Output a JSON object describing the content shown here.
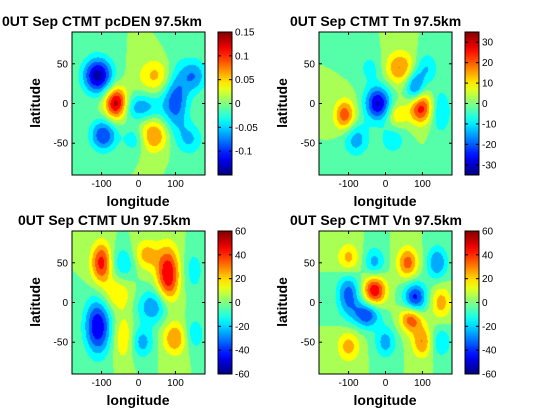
{
  "chart_data": [
    {
      "type": "heatmap",
      "title": "0UT Sep CTMT pcDEN  97.5km",
      "xlabel": "longitude",
      "ylabel": "latitude",
      "xlim": [
        -180,
        180
      ],
      "ylim": [
        -90,
        90
      ],
      "xticks": [
        -100,
        0,
        100
      ],
      "yticks": [
        50,
        0,
        -50
      ],
      "colorbar": {
        "ticks": [
          0.15,
          0.1,
          0.05,
          0,
          -0.05,
          -0.1
        ],
        "tick_labels": [
          "0.15",
          "0.1",
          "0.05",
          "0",
          "-0.05",
          "-0.1"
        ],
        "range": [
          -0.15,
          0.15
        ]
      },
      "features": [
        {
          "x": -110,
          "y": 35,
          "value": -0.14,
          "sx": 28,
          "sy": 16
        },
        {
          "x": -60,
          "y": 0,
          "value": 0.15,
          "sx": 22,
          "sy": 14
        },
        {
          "x": 50,
          "y": 35,
          "value": 0.06,
          "sx": 35,
          "sy": 15
        },
        {
          "x": 100,
          "y": 5,
          "value": -0.09,
          "sx": 25,
          "sy": 30
        },
        {
          "x": 150,
          "y": 35,
          "value": -0.07,
          "sx": 25,
          "sy": 15
        },
        {
          "x": 5,
          "y": -5,
          "value": -0.07,
          "sx": 40,
          "sy": 12
        },
        {
          "x": -95,
          "y": -40,
          "value": -0.1,
          "sx": 25,
          "sy": 14
        },
        {
          "x": 40,
          "y": -40,
          "value": 0.08,
          "sx": 30,
          "sy": 15
        },
        {
          "x": -10,
          "y": -45,
          "value": -0.05,
          "sx": 22,
          "sy": 12
        },
        {
          "x": 140,
          "y": -45,
          "value": -0.05,
          "sx": 25,
          "sy": 14
        }
      ]
    },
    {
      "type": "heatmap",
      "title": "0UT Sep CTMT Tn  97.5km",
      "xlabel": "longitude",
      "ylabel": "latitude",
      "xlim": [
        -180,
        180
      ],
      "ylim": [
        -90,
        90
      ],
      "xticks": [
        -100,
        0,
        100
      ],
      "yticks": [
        50,
        0,
        -50
      ],
      "colorbar": {
        "ticks": [
          30,
          20,
          10,
          0,
          -10,
          -20,
          -30
        ],
        "tick_labels": [
          "30",
          "20",
          "10",
          "0",
          "-10",
          "-20",
          "-30"
        ],
        "range": [
          -35,
          35
        ]
      },
      "features": [
        {
          "x": 40,
          "y": 45,
          "value": 18,
          "sx": 30,
          "sy": 15
        },
        {
          "x": -40,
          "y": 45,
          "value": -8,
          "sx": 25,
          "sy": 14
        },
        {
          "x": 110,
          "y": 45,
          "value": -12,
          "sx": 22,
          "sy": 14
        },
        {
          "x": -20,
          "y": 0,
          "value": -30,
          "sx": 25,
          "sy": 15
        },
        {
          "x": 80,
          "y": 20,
          "value": -22,
          "sx": 18,
          "sy": 14
        },
        {
          "x": 95,
          "y": -5,
          "value": 28,
          "sx": 22,
          "sy": 14
        },
        {
          "x": -110,
          "y": -15,
          "value": 22,
          "sx": 20,
          "sy": 14
        },
        {
          "x": 30,
          "y": -15,
          "value": 12,
          "sx": 20,
          "sy": 12
        },
        {
          "x": -80,
          "y": -45,
          "value": -15,
          "sx": 25,
          "sy": 15
        },
        {
          "x": 20,
          "y": -45,
          "value": -10,
          "sx": 25,
          "sy": 14
        },
        {
          "x": 150,
          "y": -10,
          "value": -12,
          "sx": 20,
          "sy": 20
        }
      ]
    },
    {
      "type": "heatmap",
      "title": "0UT Sep CTMT Un  97.5km",
      "xlabel": "longitude",
      "ylabel": "latitude",
      "xlim": [
        -180,
        180
      ],
      "ylim": [
        -90,
        90
      ],
      "xticks": [
        -100,
        0,
        100
      ],
      "yticks": [
        50,
        0,
        -50
      ],
      "colorbar": {
        "ticks": [
          60,
          40,
          20,
          0,
          -20,
          -40,
          -60
        ],
        "tick_labels": [
          "60",
          "40",
          "20",
          "0",
          "-20",
          "-40",
          "-60"
        ],
        "range": [
          -60,
          60
        ]
      },
      "features": [
        {
          "x": -100,
          "y": 50,
          "value": 45,
          "sx": 20,
          "sy": 18
        },
        {
          "x": -40,
          "y": 50,
          "value": -20,
          "sx": 25,
          "sy": 15
        },
        {
          "x": 20,
          "y": 60,
          "value": 25,
          "sx": 25,
          "sy": 14
        },
        {
          "x": 80,
          "y": 35,
          "value": 50,
          "sx": 22,
          "sy": 25
        },
        {
          "x": 150,
          "y": 40,
          "value": -15,
          "sx": 20,
          "sy": 20
        },
        {
          "x": -60,
          "y": 10,
          "value": 20,
          "sx": 30,
          "sy": 15
        },
        {
          "x": 40,
          "y": -5,
          "value": -30,
          "sx": 30,
          "sy": 15
        },
        {
          "x": -110,
          "y": -30,
          "value": -50,
          "sx": 25,
          "sy": 25
        },
        {
          "x": -40,
          "y": -45,
          "value": 20,
          "sx": 20,
          "sy": 20
        },
        {
          "x": 10,
          "y": -50,
          "value": -25,
          "sx": 22,
          "sy": 14
        },
        {
          "x": 100,
          "y": -45,
          "value": 30,
          "sx": 25,
          "sy": 15
        },
        {
          "x": 150,
          "y": -40,
          "value": -20,
          "sx": 20,
          "sy": 15
        }
      ]
    },
    {
      "type": "heatmap",
      "title": "0UT Sep CTMT Vn  97.5km",
      "xlabel": "longitude",
      "ylabel": "latitude",
      "xlim": [
        -180,
        180
      ],
      "ylim": [
        -90,
        90
      ],
      "xticks": [
        -100,
        0,
        100
      ],
      "yticks": [
        50,
        0,
        -50
      ],
      "colorbar": {
        "ticks": [
          60,
          40,
          20,
          0,
          -20,
          -40,
          -60
        ],
        "tick_labels": [
          "60",
          "40",
          "20",
          "0",
          "-20",
          "-40",
          "-60"
        ],
        "range": [
          -60,
          60
        ]
      },
      "features": [
        {
          "x": -100,
          "y": 55,
          "value": 25,
          "sx": 22,
          "sy": 14
        },
        {
          "x": -30,
          "y": 50,
          "value": -25,
          "sx": 20,
          "sy": 14
        },
        {
          "x": 60,
          "y": 50,
          "value": 35,
          "sx": 20,
          "sy": 14
        },
        {
          "x": 140,
          "y": 50,
          "value": -30,
          "sx": 20,
          "sy": 15
        },
        {
          "x": -100,
          "y": 10,
          "value": -35,
          "sx": 22,
          "sy": 20
        },
        {
          "x": -30,
          "y": 15,
          "value": 50,
          "sx": 22,
          "sy": 14
        },
        {
          "x": 80,
          "y": 5,
          "value": -45,
          "sx": 22,
          "sy": 14
        },
        {
          "x": 150,
          "y": 0,
          "value": 25,
          "sx": 20,
          "sy": 15
        },
        {
          "x": -50,
          "y": -15,
          "value": -40,
          "sx": 25,
          "sy": 12
        },
        {
          "x": 70,
          "y": -20,
          "value": 40,
          "sx": 22,
          "sy": 12
        },
        {
          "x": -100,
          "y": -55,
          "value": 25,
          "sx": 22,
          "sy": 14
        },
        {
          "x": 0,
          "y": -50,
          "value": -25,
          "sx": 20,
          "sy": 14
        },
        {
          "x": 100,
          "y": -50,
          "value": 30,
          "sx": 20,
          "sy": 14
        },
        {
          "x": 150,
          "y": -50,
          "value": -20,
          "sx": 20,
          "sy": 14
        }
      ]
    }
  ]
}
